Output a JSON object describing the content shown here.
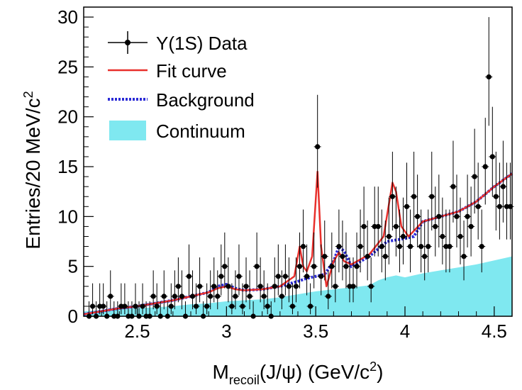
{
  "chart_data": {
    "type": "scatter",
    "xlabel_main": "M",
    "xlabel_sub": "recoil",
    "xlabel_rest": "(J/ψ) (GeV/c",
    "xlabel_sup": "2",
    "xlabel_close": ")",
    "ylabel_main": "Entries/20 MeV/c",
    "ylabel_sup": "2",
    "xlim": [
      2.2,
      4.6
    ],
    "ylim": [
      0,
      31
    ],
    "x_ticks": [
      2.5,
      3,
      3.5,
      4,
      4.5
    ],
    "x_tick_labels": [
      "2.5",
      "3",
      "3.5",
      "4",
      "4.5"
    ],
    "y_ticks": [
      0,
      5,
      10,
      15,
      20,
      25,
      30
    ],
    "y_tick_labels": [
      "0",
      "5",
      "10",
      "15",
      "20",
      "25",
      "30"
    ],
    "legend": {
      "position": "top-left",
      "entries": [
        {
          "label": "Υ(1S) Data",
          "style": "marker-errorbar",
          "color": "#000000"
        },
        {
          "label": "Fit curve",
          "style": "line",
          "color": "#e8302c"
        },
        {
          "label": "Background",
          "style": "dotted-line",
          "color": "#2b2bd6"
        },
        {
          "label": "Continuum",
          "style": "fill",
          "color": "#7fe8f0"
        }
      ]
    },
    "series": [
      {
        "name": "Υ(1S) Data",
        "x": [
          2.23,
          2.25,
          2.27,
          2.29,
          2.31,
          2.33,
          2.35,
          2.37,
          2.39,
          2.41,
          2.43,
          2.45,
          2.47,
          2.49,
          2.51,
          2.53,
          2.55,
          2.57,
          2.59,
          2.61,
          2.63,
          2.65,
          2.67,
          2.69,
          2.71,
          2.73,
          2.75,
          2.77,
          2.79,
          2.81,
          2.83,
          2.85,
          2.87,
          2.89,
          2.91,
          2.93,
          2.95,
          2.97,
          2.99,
          3.01,
          3.03,
          3.05,
          3.07,
          3.09,
          3.11,
          3.13,
          3.15,
          3.17,
          3.19,
          3.21,
          3.23,
          3.25,
          3.27,
          3.29,
          3.31,
          3.33,
          3.35,
          3.37,
          3.39,
          3.41,
          3.43,
          3.45,
          3.47,
          3.49,
          3.51,
          3.53,
          3.55,
          3.57,
          3.59,
          3.61,
          3.63,
          3.65,
          3.67,
          3.69,
          3.71,
          3.73,
          3.75,
          3.77,
          3.79,
          3.81,
          3.83,
          3.85,
          3.87,
          3.89,
          3.91,
          3.93,
          3.95,
          3.97,
          3.99,
          4.01,
          4.03,
          4.05,
          4.07,
          4.09,
          4.11,
          4.13,
          4.15,
          4.17,
          4.19,
          4.21,
          4.23,
          4.25,
          4.27,
          4.29,
          4.31,
          4.33,
          4.35,
          4.37,
          4.39,
          4.41,
          4.43,
          4.45,
          4.47,
          4.49,
          4.51,
          4.53,
          4.55,
          4.57,
          4.59
        ],
        "y": [
          0,
          1,
          0,
          1,
          1,
          0,
          2,
          0,
          0,
          1,
          1,
          0,
          0,
          1,
          0,
          1,
          0,
          0,
          2,
          1,
          0,
          2,
          0,
          1,
          2,
          3,
          2,
          0,
          4,
          2,
          1,
          3,
          0,
          1,
          2,
          3,
          2,
          4,
          5,
          3,
          1,
          2,
          4,
          1,
          3,
          2,
          0,
          5,
          3,
          2,
          1,
          0,
          3,
          4,
          2,
          4,
          3,
          1,
          3,
          5,
          7,
          4,
          1,
          5,
          17,
          4,
          6,
          2,
          5,
          3,
          7,
          6,
          5,
          3,
          3,
          5,
          7,
          9,
          6,
          3,
          9,
          9,
          7,
          6,
          8,
          12,
          9,
          7,
          8,
          11,
          7,
          12,
          10,
          7,
          6,
          7,
          12,
          9,
          10,
          8,
          7,
          7,
          13,
          10,
          8,
          6,
          10,
          9,
          14,
          11,
          7,
          15,
          24,
          16,
          12,
          11,
          13,
          11,
          11
        ],
        "err_up": [
          1.5,
          2.3,
          1.5,
          2.3,
          2.3,
          1.5,
          2.6,
          1.5,
          1.5,
          2.3,
          2.3,
          1.5,
          1.5,
          2.3,
          1.5,
          2.3,
          1.5,
          1.5,
          2.6,
          2.3,
          1.5,
          2.6,
          1.5,
          2.3,
          2.6,
          2.9,
          2.6,
          1.5,
          3.2,
          2.6,
          2.3,
          2.9,
          1.5,
          2.3,
          2.6,
          2.9,
          2.6,
          3.2,
          3.4,
          2.9,
          2.3,
          2.6,
          3.2,
          2.3,
          2.9,
          2.6,
          1.5,
          3.4,
          2.9,
          2.6,
          2.3,
          1.5,
          2.9,
          3.2,
          2.6,
          3.2,
          2.9,
          2.3,
          2.9,
          3.4,
          3.7,
          3.2,
          2.3,
          3.4,
          5.2,
          3.2,
          3.6,
          2.6,
          3.4,
          2.9,
          3.7,
          3.6,
          3.4,
          2.9,
          2.9,
          3.4,
          3.7,
          4.0,
          3.6,
          2.9,
          4.0,
          4.0,
          3.7,
          3.6,
          3.9,
          4.5,
          4.0,
          3.7,
          3.9,
          4.4,
          3.7,
          4.5,
          4.2,
          3.7,
          3.6,
          3.7,
          4.5,
          4.0,
          4.2,
          3.9,
          3.7,
          3.7,
          4.6,
          4.2,
          3.9,
          3.6,
          4.2,
          4.0,
          4.8,
          4.4,
          3.7,
          4.9,
          6.0,
          5.0,
          4.5,
          4.4,
          4.6,
          4.4,
          4.4
        ],
        "err_down": [
          0,
          0.8,
          0,
          0.8,
          0.8,
          0,
          1.3,
          0,
          0,
          0.8,
          0.8,
          0,
          0,
          0.8,
          0,
          0.8,
          0,
          0,
          1.3,
          0.8,
          0,
          1.3,
          0,
          0.8,
          1.3,
          1.6,
          1.3,
          0,
          1.9,
          1.3,
          0.8,
          1.6,
          0,
          0.8,
          1.3,
          1.6,
          1.3,
          1.9,
          2.2,
          1.6,
          0.8,
          1.3,
          1.9,
          0.8,
          1.6,
          1.3,
          0,
          2.2,
          1.6,
          1.3,
          0.8,
          0,
          1.6,
          1.9,
          1.3,
          1.9,
          1.6,
          0.8,
          1.6,
          2.2,
          2.6,
          1.9,
          0.8,
          2.2,
          4.1,
          1.9,
          2.4,
          1.3,
          2.2,
          1.6,
          2.6,
          2.4,
          2.2,
          1.6,
          1.6,
          2.2,
          2.6,
          3.0,
          2.4,
          1.6,
          3.0,
          3.0,
          2.6,
          2.4,
          2.8,
          3.4,
          3.0,
          2.6,
          2.8,
          3.3,
          2.6,
          3.4,
          3.1,
          2.6,
          2.4,
          2.6,
          3.4,
          3.0,
          3.1,
          2.8,
          2.6,
          2.6,
          3.6,
          3.1,
          2.8,
          2.4,
          3.1,
          3.0,
          3.7,
          3.3,
          2.6,
          3.8,
          4.9,
          4.0,
          3.4,
          3.3,
          3.6,
          3.3,
          3.3
        ]
      },
      {
        "name": "Background",
        "x": [
          2.2,
          2.3,
          2.4,
          2.5,
          2.6,
          2.7,
          2.8,
          2.9,
          2.95,
          3.0,
          3.05,
          3.1,
          3.2,
          3.3,
          3.4,
          3.45,
          3.5,
          3.55,
          3.6,
          3.63,
          3.66,
          3.7,
          3.8,
          3.9,
          4.0,
          4.05,
          4.1,
          4.2,
          4.3,
          4.4,
          4.5,
          4.6
        ],
        "y": [
          0.2,
          0.5,
          0.8,
          1.0,
          1.3,
          1.6,
          2.0,
          2.4,
          3.0,
          3.2,
          2.8,
          2.6,
          2.7,
          3.0,
          3.5,
          3.8,
          4.0,
          4.2,
          5.5,
          7.0,
          6.5,
          5.0,
          6.0,
          7.5,
          7.8,
          8.0,
          9.5,
          10.0,
          10.5,
          11.5,
          13.0,
          14.3
        ]
      },
      {
        "name": "Fit curve",
        "x": [
          2.2,
          2.3,
          2.4,
          2.5,
          2.6,
          2.7,
          2.8,
          2.9,
          2.95,
          3.0,
          3.05,
          3.1,
          3.2,
          3.3,
          3.38,
          3.41,
          3.43,
          3.45,
          3.48,
          3.51,
          3.53,
          3.56,
          3.6,
          3.63,
          3.66,
          3.7,
          3.8,
          3.88,
          3.93,
          3.95,
          3.98,
          4.02,
          4.1,
          4.2,
          4.3,
          4.4,
          4.5,
          4.6
        ],
        "y": [
          0.2,
          0.5,
          0.8,
          1.0,
          1.3,
          1.6,
          2.0,
          2.4,
          2.8,
          3.0,
          2.7,
          2.6,
          2.7,
          3.0,
          4.0,
          7.0,
          5.0,
          4.5,
          6.0,
          14.5,
          7.0,
          3.0,
          5.5,
          6.4,
          5.5,
          5.2,
          6.2,
          8.0,
          13.4,
          12.5,
          9.0,
          8.0,
          9.5,
          10.0,
          10.5,
          11.5,
          13.0,
          14.3
        ]
      },
      {
        "name": "Continuum",
        "x": [
          2.2,
          2.3,
          2.4,
          2.5,
          2.6,
          2.7,
          2.8,
          2.9,
          3.0,
          3.1,
          3.2,
          3.3,
          3.4,
          3.5,
          3.6,
          3.7,
          3.8,
          3.85,
          3.9,
          3.95,
          4.0,
          4.1,
          4.2,
          4.3,
          4.4,
          4.5,
          4.6
        ],
        "y": [
          0.5,
          0.6,
          0.7,
          0.8,
          0.9,
          1.0,
          1.2,
          1.3,
          1.5,
          1.6,
          1.7,
          1.9,
          2.2,
          2.5,
          2.7,
          2.9,
          3.1,
          3.6,
          3.9,
          4.1,
          3.9,
          4.3,
          4.6,
          4.9,
          5.2,
          5.6,
          6.0
        ]
      }
    ]
  }
}
